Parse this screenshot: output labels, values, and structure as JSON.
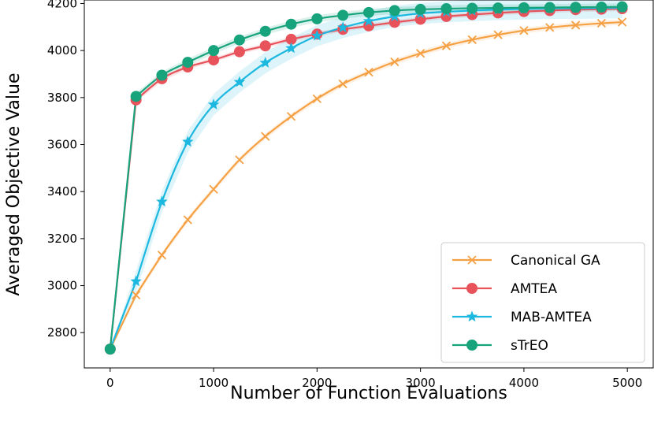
{
  "chart_data": {
    "type": "line",
    "title": "",
    "xlabel": "Number of Function Evaluations",
    "ylabel": "Averaged Objective Value",
    "xlim": [
      -250,
      5250
    ],
    "ylim": [
      2650,
      4215
    ],
    "xticks": [
      0,
      1000,
      2000,
      3000,
      4000,
      5000
    ],
    "xtick_labels": [
      "0",
      "1000",
      "2000",
      "3000",
      "4000",
      "5000"
    ],
    "yticks": [
      2800,
      3000,
      3200,
      3400,
      3600,
      3800,
      4000,
      4200
    ],
    "ytick_labels": [
      "2800",
      "3000",
      "3200",
      "3400",
      "3600",
      "3800",
      "4000",
      "4200"
    ],
    "grid": false,
    "legend_position": "bottom-right",
    "x": [
      0,
      250,
      500,
      750,
      1000,
      1250,
      1500,
      1750,
      2000,
      2250,
      2500,
      2750,
      3000,
      3250,
      3500,
      3750,
      4000,
      4250,
      4500,
      4750,
      4950
    ],
    "series": [
      {
        "name": "Canonical GA",
        "color": "#f5a043",
        "marker": "x",
        "band": 12,
        "values": [
          2730,
          2960,
          3130,
          3280,
          3410,
          3535,
          3635,
          3720,
          3795,
          3858,
          3908,
          3952,
          3988,
          4020,
          4046,
          4067,
          4085,
          4098,
          4108,
          4116,
          4121
        ]
      },
      {
        "name": "AMTEA",
        "color": "#e8525a",
        "marker": "o",
        "band": 10,
        "values": [
          2730,
          3790,
          3880,
          3930,
          3960,
          3995,
          4020,
          4048,
          4070,
          4090,
          4105,
          4120,
          4133,
          4145,
          4153,
          4160,
          4166,
          4170,
          4174,
          4176,
          4178
        ]
      },
      {
        "name": "MAB-AMTEA",
        "color": "#1cb8e0",
        "marker": "*",
        "band": 45,
        "values": [
          2730,
          3018,
          3357,
          3612,
          3770,
          3866,
          3948,
          4010,
          4063,
          4098,
          4125,
          4145,
          4158,
          4165,
          4170,
          4174,
          4177,
          4179,
          4180,
          4181,
          4182
        ]
      },
      {
        "name": "sTrEO",
        "color": "#17a37c",
        "marker": "o",
        "band": 15,
        "values": [
          2730,
          3805,
          3895,
          3950,
          4000,
          4045,
          4082,
          4112,
          4135,
          4150,
          4162,
          4170,
          4175,
          4178,
          4180,
          4181,
          4182,
          4183,
          4184,
          4185,
          4186
        ]
      }
    ]
  }
}
